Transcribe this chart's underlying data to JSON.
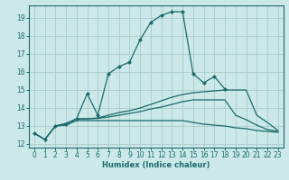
{
  "background_color": "#cce8e8",
  "grid_color": "#aacccc",
  "line_color": "#1a6b6b",
  "xlabel": "Humidex (Indice chaleur)",
  "xlim": [
    -0.5,
    23.5
  ],
  "ylim": [
    11.8,
    19.7
  ],
  "xticks": [
    0,
    1,
    2,
    3,
    4,
    5,
    6,
    7,
    8,
    9,
    10,
    11,
    12,
    13,
    14,
    15,
    16,
    17,
    18,
    19,
    20,
    21,
    22,
    23
  ],
  "yticks": [
    12,
    13,
    14,
    15,
    16,
    17,
    18,
    19
  ],
  "series": [
    {
      "x": [
        0,
        1,
        2,
        3,
        4,
        5,
        6,
        7,
        8,
        9,
        10,
        11,
        12,
        13,
        14,
        15,
        16,
        17,
        18
      ],
      "y": [
        12.6,
        12.25,
        13.0,
        13.1,
        13.4,
        14.8,
        13.6,
        15.9,
        16.3,
        16.55,
        17.8,
        18.75,
        19.15,
        19.35,
        19.35,
        15.9,
        15.4,
        15.75,
        15.05
      ],
      "marker": true
    },
    {
      "x": [
        0,
        1,
        2,
        3,
        4,
        5,
        6,
        7,
        8,
        9,
        10,
        11,
        12,
        13,
        14,
        15,
        16,
        17,
        18,
        19,
        20,
        21,
        22,
        23
      ],
      "y": [
        12.6,
        12.25,
        13.0,
        13.15,
        13.4,
        13.4,
        13.45,
        13.6,
        13.75,
        13.85,
        14.0,
        14.2,
        14.4,
        14.6,
        14.75,
        14.85,
        14.9,
        14.95,
        15.0,
        15.0,
        15.0,
        13.6,
        13.2,
        12.75
      ],
      "marker": false
    },
    {
      "x": [
        0,
        1,
        2,
        3,
        4,
        5,
        6,
        7,
        8,
        9,
        10,
        11,
        12,
        13,
        14,
        15,
        16,
        17,
        18,
        19,
        20,
        21,
        22,
        23
      ],
      "y": [
        12.6,
        12.25,
        13.0,
        13.05,
        13.3,
        13.3,
        13.3,
        13.3,
        13.3,
        13.3,
        13.3,
        13.3,
        13.3,
        13.3,
        13.3,
        13.2,
        13.1,
        13.05,
        13.0,
        12.9,
        12.85,
        12.75,
        12.7,
        12.65
      ],
      "marker": false
    },
    {
      "x": [
        2,
        3,
        4,
        5,
        6,
        7,
        8,
        9,
        10,
        11,
        12,
        13,
        14,
        15,
        16,
        17,
        18,
        19,
        20,
        21,
        22,
        23
      ],
      "y": [
        13.0,
        13.1,
        13.4,
        13.4,
        13.42,
        13.5,
        13.6,
        13.7,
        13.8,
        13.95,
        14.05,
        14.2,
        14.35,
        14.45,
        14.45,
        14.45,
        14.45,
        13.6,
        13.35,
        13.05,
        12.8,
        12.7
      ],
      "marker": false
    }
  ]
}
